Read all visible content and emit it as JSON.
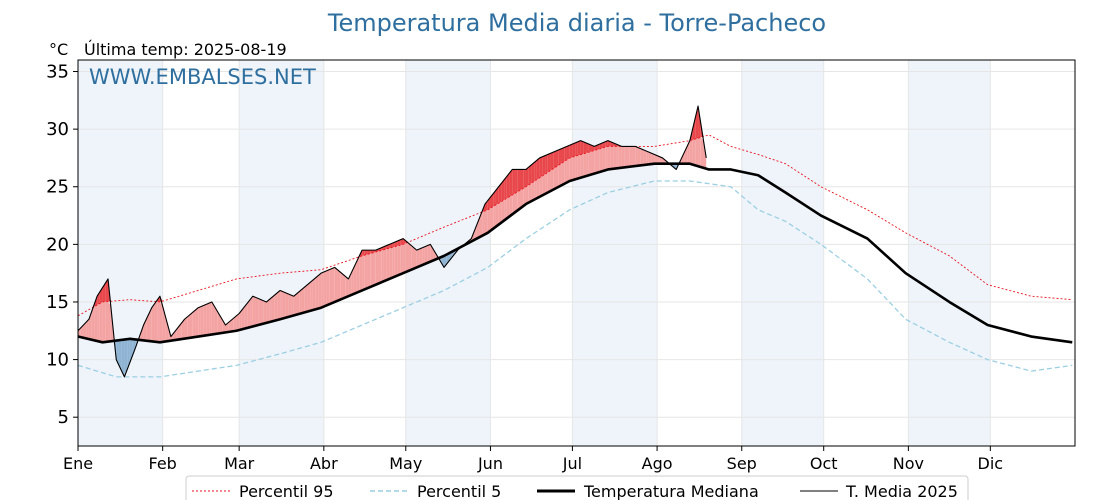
{
  "chart_data": {
    "type": "line",
    "title": "Temperatura Media diaria - Torre-Pacheco",
    "unit_label": "°C",
    "last_update": "Última temp: 2025-08-19",
    "watermark": "WWW.EMBALSES.NET",
    "ylim": [
      2.5,
      36
    ],
    "yticks": [
      5,
      10,
      15,
      20,
      25,
      30,
      35
    ],
    "month_labels": [
      "Ene",
      "Feb",
      "Mar",
      "Abr",
      "May",
      "Jun",
      "Jul",
      "Ago",
      "Sep",
      "Oct",
      "Nov",
      "Dic"
    ],
    "month_start_doy": [
      1,
      32,
      60,
      91,
      121,
      152,
      182,
      213,
      244,
      274,
      305,
      335
    ],
    "days_in_year": 365,
    "grid": true,
    "legend_position": "bottom",
    "colors": {
      "p95": "#e8141e",
      "p5": "#9ccfe3",
      "median": "#000000",
      "current": "#000000",
      "above_fill": "#f4a3a3",
      "above_p95_fill": "#e8474b",
      "below_fill": "#8fb4d3",
      "below_p5_fill": "#2a6fa8",
      "shade": "#eef4fa"
    },
    "series": [
      {
        "name": "Percentil 95",
        "style": "dotted-red",
        "doy": [
          1,
          10,
          20,
          31,
          45,
          59,
          75,
          90,
          105,
          120,
          135,
          151,
          165,
          181,
          195,
          212,
          225,
          232,
          240,
          250,
          260,
          273,
          290,
          304,
          320,
          334,
          350,
          365
        ],
        "values": [
          13.8,
          15.0,
          15.2,
          15.0,
          16.0,
          17.0,
          17.5,
          17.8,
          19.0,
          20.0,
          21.5,
          23.0,
          25.0,
          27.5,
          28.5,
          28.5,
          29.0,
          29.5,
          28.5,
          27.8,
          27.0,
          25.0,
          23.0,
          21.0,
          19.0,
          16.5,
          15.5,
          15.2
        ]
      },
      {
        "name": "Percentil 5",
        "style": "dashed-lightblue",
        "doy": [
          1,
          15,
          31,
          45,
          59,
          75,
          90,
          105,
          120,
          135,
          151,
          165,
          181,
          195,
          212,
          225,
          240,
          250,
          260,
          273,
          290,
          304,
          320,
          334,
          350,
          365
        ],
        "values": [
          9.5,
          8.5,
          8.5,
          9.0,
          9.5,
          10.5,
          11.5,
          13.0,
          14.5,
          16.0,
          18.0,
          20.5,
          23.0,
          24.5,
          25.5,
          25.5,
          25.0,
          23.0,
          22.0,
          20.0,
          17.0,
          13.5,
          11.5,
          10.0,
          9.0,
          9.5
        ]
      },
      {
        "name": "Temperatura Mediana",
        "style": "thick-black",
        "doy": [
          1,
          10,
          20,
          31,
          45,
          59,
          75,
          90,
          105,
          120,
          135,
          151,
          165,
          181,
          195,
          212,
          225,
          232,
          240,
          250,
          260,
          273,
          290,
          304,
          320,
          334,
          350,
          365
        ],
        "values": [
          12.0,
          11.5,
          11.8,
          11.5,
          12.0,
          12.5,
          13.5,
          14.5,
          16.0,
          17.5,
          19.0,
          21.0,
          23.5,
          25.5,
          26.5,
          27.0,
          27.0,
          26.5,
          26.5,
          26.0,
          24.5,
          22.5,
          20.5,
          17.5,
          15.0,
          13.0,
          12.0,
          11.5
        ]
      },
      {
        "name": "T. Media 2025",
        "style": "thin-black",
        "doy": [
          1,
          5,
          8,
          12,
          15,
          18,
          22,
          25,
          28,
          31,
          35,
          40,
          45,
          50,
          55,
          60,
          65,
          70,
          75,
          80,
          85,
          90,
          95,
          100,
          105,
          110,
          115,
          120,
          125,
          130,
          135,
          140,
          145,
          150,
          155,
          160,
          165,
          170,
          175,
          180,
          185,
          190,
          195,
          200,
          205,
          210,
          215,
          220,
          222,
          225,
          228,
          231
        ],
        "values": [
          12.5,
          13.5,
          15.5,
          17.0,
          10.0,
          8.5,
          11.0,
          13.0,
          14.5,
          15.5,
          12.0,
          13.5,
          14.5,
          15.0,
          13.0,
          14.0,
          15.5,
          15.0,
          16.0,
          15.5,
          16.5,
          17.5,
          18.0,
          17.0,
          19.5,
          19.5,
          20.0,
          20.5,
          19.5,
          20.0,
          18.0,
          19.5,
          20.5,
          23.5,
          25.0,
          26.5,
          26.5,
          27.5,
          28.0,
          28.5,
          29.0,
          28.5,
          29.0,
          28.5,
          28.5,
          28.0,
          27.5,
          26.5,
          27.5,
          29.0,
          32.0,
          27.5
        ]
      }
    ]
  }
}
